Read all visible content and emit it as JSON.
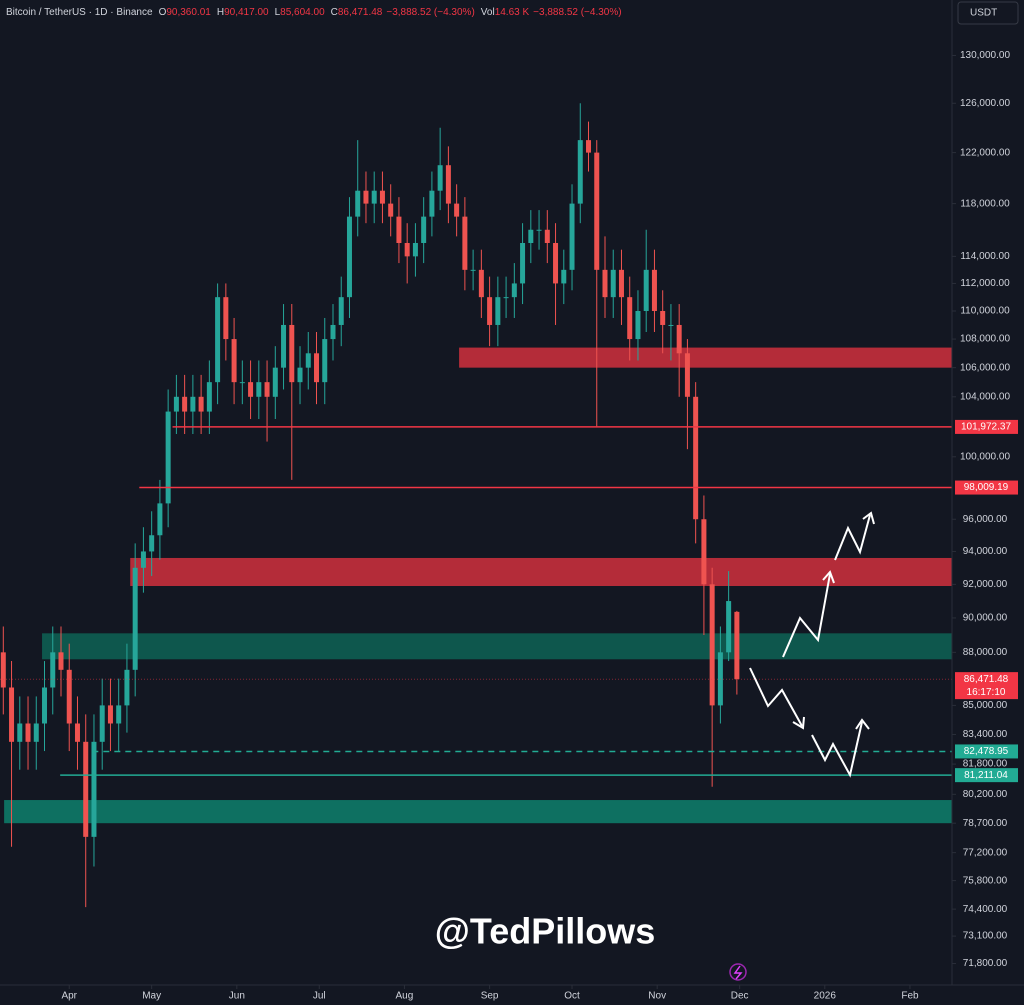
{
  "header": {
    "symbol": "Bitcoin / TetherUS · 1D · Binance",
    "fields": [
      {
        "key": "O",
        "text": "90,360.01"
      },
      {
        "key": "H",
        "text": "90,417.00"
      },
      {
        "key": "L",
        "text": "85,604.00"
      },
      {
        "key": "C",
        "text": "86,471.48"
      },
      {
        "text": "−3,888.52 (−4.30%)"
      },
      {
        "key": "Vol",
        "text": "14.63 K"
      },
      {
        "text": "−3,888.52 (−4.30%)"
      }
    ],
    "currency_button": "USDT"
  },
  "watermark": "@TedPillows",
  "chart_data": {
    "type": "candlestick",
    "log_scale": true,
    "up_color": "#26a69a",
    "down_color": "#ef5350",
    "x": [
      0,
      3,
      6,
      9,
      12,
      15,
      18,
      21,
      24,
      27,
      30,
      33,
      36,
      39,
      42,
      45,
      48,
      51,
      54,
      57,
      60,
      63,
      66,
      69,
      72,
      75,
      78,
      81,
      84,
      87,
      90,
      93,
      96,
      99,
      102,
      105,
      108,
      111,
      114,
      117,
      120,
      123,
      126,
      129,
      132,
      135,
      138,
      141,
      144,
      147,
      150,
      153,
      156,
      159,
      162,
      165,
      168,
      171,
      174,
      177,
      180,
      183,
      186,
      189,
      192,
      195,
      198,
      201,
      204,
      207,
      210,
      213,
      216,
      219,
      222,
      225,
      228,
      231,
      234,
      237,
      240,
      243,
      246,
      249,
      252,
      255,
      258,
      261,
      264,
      267
    ],
    "open": [
      88000,
      86000,
      83000,
      84000,
      83000,
      84000,
      86000,
      88000,
      87000,
      84000,
      83000,
      78000,
      83000,
      85000,
      84000,
      85000,
      87000,
      93000,
      94000,
      95000,
      97000,
      103000,
      104000,
      103000,
      104000,
      103000,
      105000,
      111000,
      108000,
      105000,
      105000,
      104000,
      105000,
      104000,
      106000,
      109000,
      105000,
      106000,
      107000,
      105000,
      108000,
      109000,
      111000,
      117000,
      119000,
      118000,
      119000,
      118000,
      117000,
      115000,
      114000,
      115000,
      117000,
      119000,
      121000,
      118000,
      117000,
      113000,
      113000,
      111000,
      109000,
      111000,
      111000,
      112000,
      115000,
      116000,
      116000,
      115000,
      112000,
      113000,
      118000,
      123000,
      122000,
      113000,
      111000,
      113000,
      111000,
      108000,
      110000,
      113000,
      110000,
      109000,
      109000,
      107000,
      104000,
      96000,
      92000,
      85000,
      88000,
      90360.01
    ],
    "high": [
      89500,
      87500,
      85500,
      85500,
      85500,
      87500,
      89500,
      89500,
      88500,
      85500,
      84500,
      84500,
      86500,
      86500,
      86500,
      88500,
      94500,
      95500,
      96500,
      98500,
      104500,
      105500,
      105500,
      105500,
      105500,
      106500,
      112000,
      112000,
      109500,
      106500,
      106500,
      106500,
      106500,
      107500,
      110500,
      110500,
      107500,
      108500,
      108500,
      109500,
      110500,
      112500,
      118500,
      123000,
      120500,
      120500,
      120500,
      119500,
      118500,
      116500,
      116500,
      118500,
      120500,
      124000,
      122500,
      119500,
      118500,
      114500,
      114500,
      112500,
      112500,
      112500,
      113500,
      116500,
      117500,
      117500,
      117500,
      116500,
      114500,
      119500,
      126000,
      124500,
      123000,
      115500,
      114500,
      114500,
      112500,
      111500,
      116000,
      114500,
      111500,
      110500,
      110500,
      108000,
      105000,
      97500,
      93000,
      89500,
      92800,
      90417
    ],
    "low": [
      84500,
      77500,
      81500,
      81500,
      81500,
      82500,
      84500,
      85500,
      82500,
      81500,
      74500,
      76500,
      81500,
      82500,
      82500,
      83500,
      85500,
      91500,
      92500,
      93500,
      95500,
      101500,
      101500,
      101500,
      101500,
      101500,
      103500,
      106500,
      103500,
      103500,
      102500,
      102500,
      101000,
      102500,
      104500,
      98500,
      103500,
      104500,
      103500,
      103500,
      106500,
      107500,
      109500,
      115500,
      116500,
      116500,
      116500,
      115500,
      113500,
      112000,
      112500,
      113500,
      115500,
      117500,
      116500,
      115500,
      111500,
      111500,
      109500,
      107500,
      107500,
      109500,
      109500,
      110500,
      113500,
      114500,
      113500,
      109000,
      110500,
      111500,
      116500,
      120500,
      102000,
      109500,
      109500,
      109000,
      106500,
      106500,
      108500,
      108500,
      107000,
      106500,
      104000,
      100500,
      94500,
      89000,
      80600,
      84000,
      87500,
      85604
    ],
    "close": [
      86000,
      83000,
      84000,
      83000,
      84000,
      86000,
      88000,
      87000,
      84000,
      83000,
      78000,
      83000,
      85000,
      84000,
      85000,
      87000,
      93000,
      94000,
      95000,
      97000,
      103000,
      104000,
      103000,
      104000,
      103000,
      105000,
      111000,
      108000,
      105000,
      105000,
      104000,
      105000,
      104000,
      106000,
      109000,
      105000,
      106000,
      107000,
      105000,
      108000,
      109000,
      111000,
      117000,
      119000,
      118000,
      119000,
      118000,
      117000,
      115000,
      114000,
      115000,
      117000,
      119000,
      121000,
      118000,
      117000,
      113000,
      113000,
      111000,
      109000,
      111000,
      111000,
      112000,
      115000,
      116000,
      116000,
      115000,
      112000,
      113000,
      118000,
      123000,
      122000,
      113000,
      111000,
      113000,
      111000,
      108000,
      110000,
      113000,
      110000,
      109000,
      109000,
      107000,
      104000,
      96000,
      92000,
      85000,
      88000,
      91000,
      86471.48
    ],
    "xlim": [
      -1.2,
      345.3
    ],
    "ylim": [
      70800,
      134800
    ],
    "xticks": [
      {
        "value": 24,
        "label": "Apr"
      },
      {
        "value": 54,
        "label": "May"
      },
      {
        "value": 85,
        "label": "Jun"
      },
      {
        "value": 115,
        "label": "Jul"
      },
      {
        "value": 146,
        "label": "Aug"
      },
      {
        "value": 177,
        "label": "Sep"
      },
      {
        "value": 207,
        "label": "Oct"
      },
      {
        "value": 238,
        "label": "Nov"
      },
      {
        "value": 268,
        "label": "Dec"
      },
      {
        "value": 299,
        "label": "2026"
      },
      {
        "value": 330,
        "label": "Feb"
      }
    ],
    "yticks": [
      {
        "value": 130000,
        "label": "130,000.00"
      },
      {
        "value": 126000,
        "label": "126,000.00"
      },
      {
        "value": 122000,
        "label": "122,000.00"
      },
      {
        "value": 118000,
        "label": "118,000.00"
      },
      {
        "value": 114000,
        "label": "114,000.00"
      },
      {
        "value": 112000,
        "label": "112,000.00"
      },
      {
        "value": 110000,
        "label": "110,000.00"
      },
      {
        "value": 108000,
        "label": "108,000.00"
      },
      {
        "value": 106000,
        "label": "106,000.00"
      },
      {
        "value": 104000,
        "label": "104,000.00"
      },
      {
        "value": 100000,
        "label": "100,000.00"
      },
      {
        "value": 96000,
        "label": "96,000.00"
      },
      {
        "value": 94000,
        "label": "94,000.00"
      },
      {
        "value": 92000,
        "label": "92,000.00"
      },
      {
        "value": 90000,
        "label": "90,000.00"
      },
      {
        "value": 88000,
        "label": "88,000.00"
      },
      {
        "value": 85000,
        "label": "85,000.00"
      },
      {
        "value": 83400,
        "label": "83,400.00"
      },
      {
        "value": 81800,
        "label": "81,800.00"
      },
      {
        "value": 80200,
        "label": "80,200.00"
      },
      {
        "value": 78700,
        "label": "78,700.00"
      },
      {
        "value": 77200,
        "label": "77,200.00"
      },
      {
        "value": 75800,
        "label": "75,800.00"
      },
      {
        "value": 74400,
        "label": "74,400.00"
      },
      {
        "value": 73100,
        "label": "73,100.00"
      },
      {
        "value": 71800,
        "label": "71,800.00"
      }
    ],
    "zones": [
      {
        "low": 106000,
        "high": 107400,
        "start": 165.9,
        "color": "#c62f3c"
      },
      {
        "low": 91900,
        "high": 93600,
        "start": 46.2,
        "color": "#c62f3c"
      },
      {
        "low": 87600,
        "high": 89100,
        "start": 14.1,
        "color": "#0e5e52"
      },
      {
        "low": 78700,
        "high": 79900,
        "start": 0.3,
        "color": "#0e7a68"
      }
    ],
    "levels": [
      {
        "value": 101972.37,
        "label": "101,972.37",
        "start": 61.6,
        "color": "#f23645",
        "dashed": false
      },
      {
        "value": 98009.19,
        "label": "98,009.19",
        "start": 49.5,
        "color": "#f23645",
        "dashed": false
      },
      {
        "value": 82478.95,
        "label": "82,478.95",
        "start": 32.4,
        "color": "#22ab94",
        "dashed": true
      },
      {
        "value": 81211.04,
        "label": "81,211.04",
        "start": 20.7,
        "color": "#22ab94",
        "dashed": false
      }
    ],
    "last_price": {
      "value": 86471.48,
      "label": "86,471.48",
      "countdown": "16:17:10",
      "color": "#f23645"
    }
  }
}
